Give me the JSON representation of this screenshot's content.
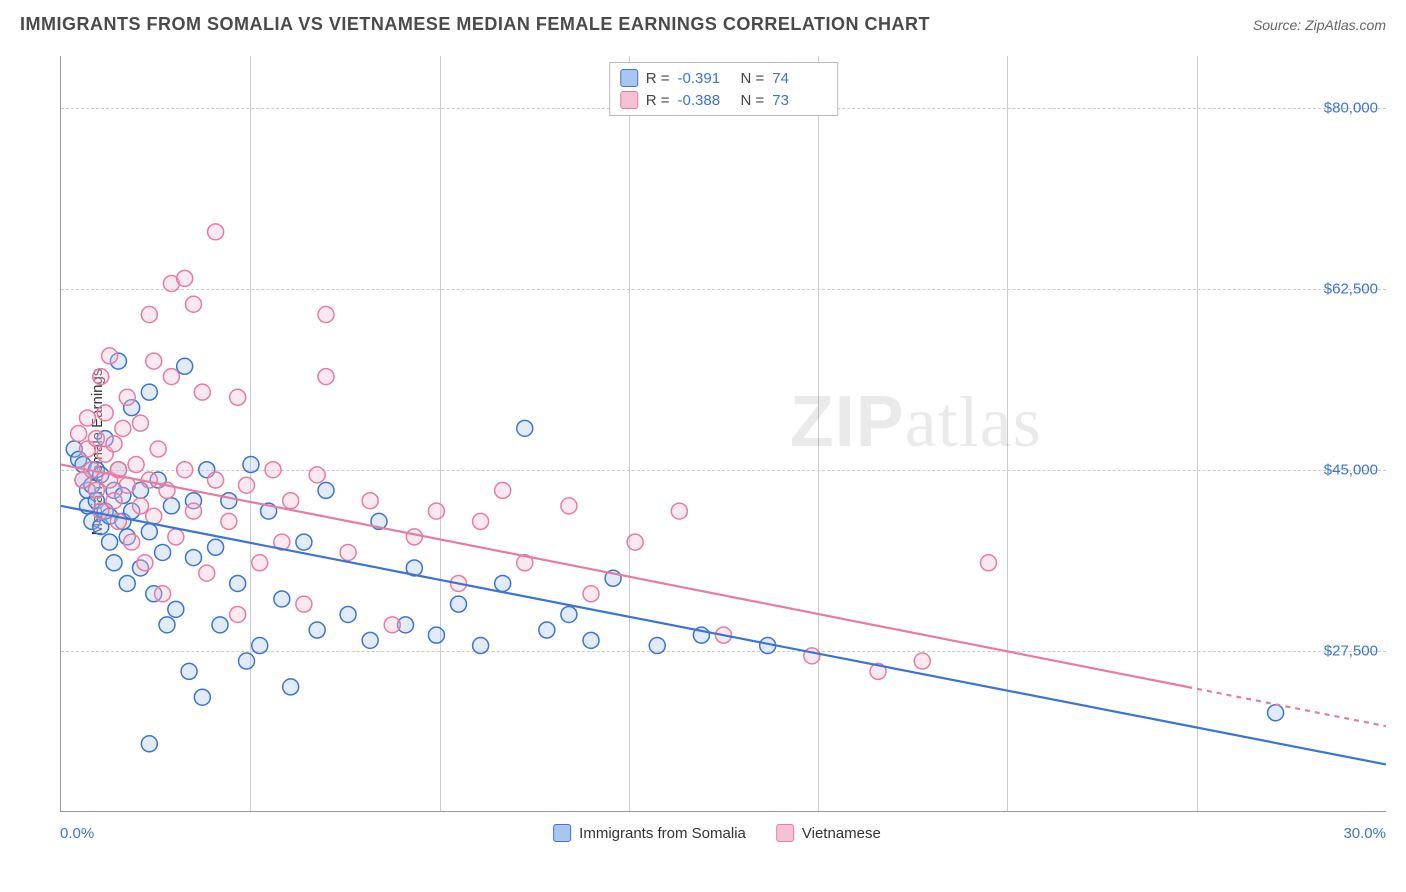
{
  "header": {
    "title": "IMMIGRANTS FROM SOMALIA VS VIETNAMESE MEDIAN FEMALE EARNINGS CORRELATION CHART",
    "source": "Source: ZipAtlas.com"
  },
  "watermark": {
    "bold": "ZIP",
    "rest": "atlas"
  },
  "chart": {
    "type": "scatter",
    "ylabel": "Median Female Earnings",
    "xlim": [
      0,
      30
    ],
    "ylim": [
      12000,
      85000
    ],
    "xaxis_label_min": "0.0%",
    "xaxis_label_max": "30.0%",
    "yticks": [
      {
        "v": 80000,
        "label": "$80,000"
      },
      {
        "v": 62500,
        "label": "$62,500"
      },
      {
        "v": 45000,
        "label": "$45,000"
      },
      {
        "v": 27500,
        "label": "$27,500"
      }
    ],
    "xgrid_cells": 7,
    "grid_color": "#cccccc",
    "background_color": "#ffffff",
    "marker_radius": 8,
    "marker_stroke_width": 1.5,
    "marker_fill_opacity": 0.35,
    "trend_line_width": 2.2,
    "series": [
      {
        "key": "somalia",
        "label": "Immigrants from Somalia",
        "color_stroke": "#3b74d6",
        "color_fill": "#a9c6ef",
        "R": "-0.391",
        "N": "74",
        "trend": {
          "x1": 0,
          "y1": 41500,
          "x2": 30,
          "y2": 16500
        },
        "points": [
          [
            0.3,
            47000
          ],
          [
            0.4,
            46000
          ],
          [
            0.5,
            45500
          ],
          [
            0.5,
            44000
          ],
          [
            0.6,
            43000
          ],
          [
            0.6,
            41500
          ],
          [
            0.7,
            43500
          ],
          [
            0.7,
            40000
          ],
          [
            0.8,
            42000
          ],
          [
            0.8,
            45000
          ],
          [
            0.9,
            39500
          ],
          [
            0.9,
            44500
          ],
          [
            1.0,
            48000
          ],
          [
            1.0,
            41000
          ],
          [
            1.1,
            40500
          ],
          [
            1.1,
            38000
          ],
          [
            1.2,
            43000
          ],
          [
            1.2,
            36000
          ],
          [
            1.3,
            45000
          ],
          [
            1.3,
            55500
          ],
          [
            1.4,
            40000
          ],
          [
            1.4,
            42500
          ],
          [
            1.5,
            38500
          ],
          [
            1.5,
            34000
          ],
          [
            1.6,
            51000
          ],
          [
            1.6,
            41000
          ],
          [
            1.8,
            43000
          ],
          [
            1.8,
            35500
          ],
          [
            2.0,
            52500
          ],
          [
            2.0,
            39000
          ],
          [
            2.1,
            33000
          ],
          [
            2.2,
            44000
          ],
          [
            2.3,
            37000
          ],
          [
            2.4,
            30000
          ],
          [
            2.5,
            41500
          ],
          [
            2.6,
            31500
          ],
          [
            2.8,
            55000
          ],
          [
            2.9,
            25500
          ],
          [
            3.0,
            42000
          ],
          [
            3.0,
            36500
          ],
          [
            3.2,
            23000
          ],
          [
            3.3,
            45000
          ],
          [
            3.5,
            37500
          ],
          [
            3.6,
            30000
          ],
          [
            3.8,
            42000
          ],
          [
            4.0,
            34000
          ],
          [
            4.2,
            26500
          ],
          [
            4.3,
            45500
          ],
          [
            4.5,
            28000
          ],
          [
            4.7,
            41000
          ],
          [
            5.0,
            32500
          ],
          [
            5.2,
            24000
          ],
          [
            5.5,
            38000
          ],
          [
            5.8,
            29500
          ],
          [
            6.0,
            43000
          ],
          [
            6.5,
            31000
          ],
          [
            7.0,
            28500
          ],
          [
            7.2,
            40000
          ],
          [
            7.8,
            30000
          ],
          [
            8.0,
            35500
          ],
          [
            8.5,
            29000
          ],
          [
            9.0,
            32000
          ],
          [
            9.5,
            28000
          ],
          [
            10.0,
            34000
          ],
          [
            10.5,
            49000
          ],
          [
            11.0,
            29500
          ],
          [
            11.5,
            31000
          ],
          [
            12.0,
            28500
          ],
          [
            12.5,
            34500
          ],
          [
            13.5,
            28000
          ],
          [
            14.5,
            29000
          ],
          [
            16.0,
            28000
          ],
          [
            2.0,
            18500
          ],
          [
            27.5,
            21500
          ]
        ]
      },
      {
        "key": "vietnamese",
        "label": "Vietnamese",
        "color_stroke": "#e87ca0",
        "color_fill": "#f6c1d2",
        "R": "-0.388",
        "N": "73",
        "trend": {
          "x1": 0,
          "y1": 45500,
          "x2": 25.5,
          "y2": 24000
        },
        "trend_dash_ext": {
          "x1": 25.5,
          "y1": 24000,
          "x2": 30,
          "y2": 20200
        },
        "points": [
          [
            0.4,
            48500
          ],
          [
            0.5,
            44000
          ],
          [
            0.6,
            47000
          ],
          [
            0.6,
            50000
          ],
          [
            0.7,
            45000
          ],
          [
            0.8,
            43000
          ],
          [
            0.8,
            48000
          ],
          [
            0.9,
            54000
          ],
          [
            0.9,
            41000
          ],
          [
            1.0,
            46500
          ],
          [
            1.0,
            50500
          ],
          [
            1.1,
            44000
          ],
          [
            1.1,
            56000
          ],
          [
            1.2,
            42000
          ],
          [
            1.2,
            47500
          ],
          [
            1.3,
            40000
          ],
          [
            1.3,
            45000
          ],
          [
            1.4,
            49000
          ],
          [
            1.5,
            43500
          ],
          [
            1.5,
            52000
          ],
          [
            1.6,
            38000
          ],
          [
            1.7,
            45500
          ],
          [
            1.8,
            41500
          ],
          [
            1.8,
            49500
          ],
          [
            1.9,
            36000
          ],
          [
            2.0,
            44000
          ],
          [
            2.0,
            60000
          ],
          [
            2.1,
            40500
          ],
          [
            2.2,
            47000
          ],
          [
            2.3,
            33000
          ],
          [
            2.4,
            43000
          ],
          [
            2.5,
            54000
          ],
          [
            2.5,
            63000
          ],
          [
            2.6,
            38500
          ],
          [
            2.8,
            45000
          ],
          [
            2.8,
            63500
          ],
          [
            3.0,
            61000
          ],
          [
            3.0,
            41000
          ],
          [
            3.2,
            52500
          ],
          [
            3.3,
            35000
          ],
          [
            3.5,
            44000
          ],
          [
            3.5,
            68000
          ],
          [
            3.8,
            40000
          ],
          [
            4.0,
            52000
          ],
          [
            4.0,
            31000
          ],
          [
            4.2,
            43500
          ],
          [
            4.5,
            36000
          ],
          [
            4.8,
            45000
          ],
          [
            5.0,
            38000
          ],
          [
            5.2,
            42000
          ],
          [
            5.5,
            32000
          ],
          [
            5.8,
            44500
          ],
          [
            6.0,
            54000
          ],
          [
            6.0,
            60000
          ],
          [
            6.5,
            37000
          ],
          [
            7.0,
            42000
          ],
          [
            7.5,
            30000
          ],
          [
            8.0,
            38500
          ],
          [
            8.5,
            41000
          ],
          [
            9.0,
            34000
          ],
          [
            9.5,
            40000
          ],
          [
            10.0,
            43000
          ],
          [
            10.5,
            36000
          ],
          [
            11.5,
            41500
          ],
          [
            12.0,
            33000
          ],
          [
            13.0,
            38000
          ],
          [
            14.0,
            41000
          ],
          [
            15.0,
            29000
          ],
          [
            17.0,
            27000
          ],
          [
            18.5,
            25500
          ],
          [
            19.5,
            26500
          ],
          [
            21.0,
            36000
          ],
          [
            2.1,
            55500
          ]
        ]
      }
    ],
    "bottom_legend": {
      "items": [
        {
          "series": "somalia"
        },
        {
          "series": "vietnamese"
        }
      ]
    }
  }
}
